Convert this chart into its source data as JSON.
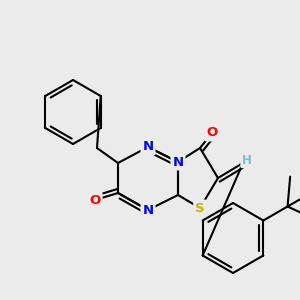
{
  "bg_color": "#ebebeb",
  "atom_colors": {
    "C": "#000000",
    "N": "#0000ff",
    "O": "#ff0000",
    "S": "#bbbb00",
    "H": "#7fbfbf"
  },
  "line_color": "#000000",
  "line_width": 1.5
}
